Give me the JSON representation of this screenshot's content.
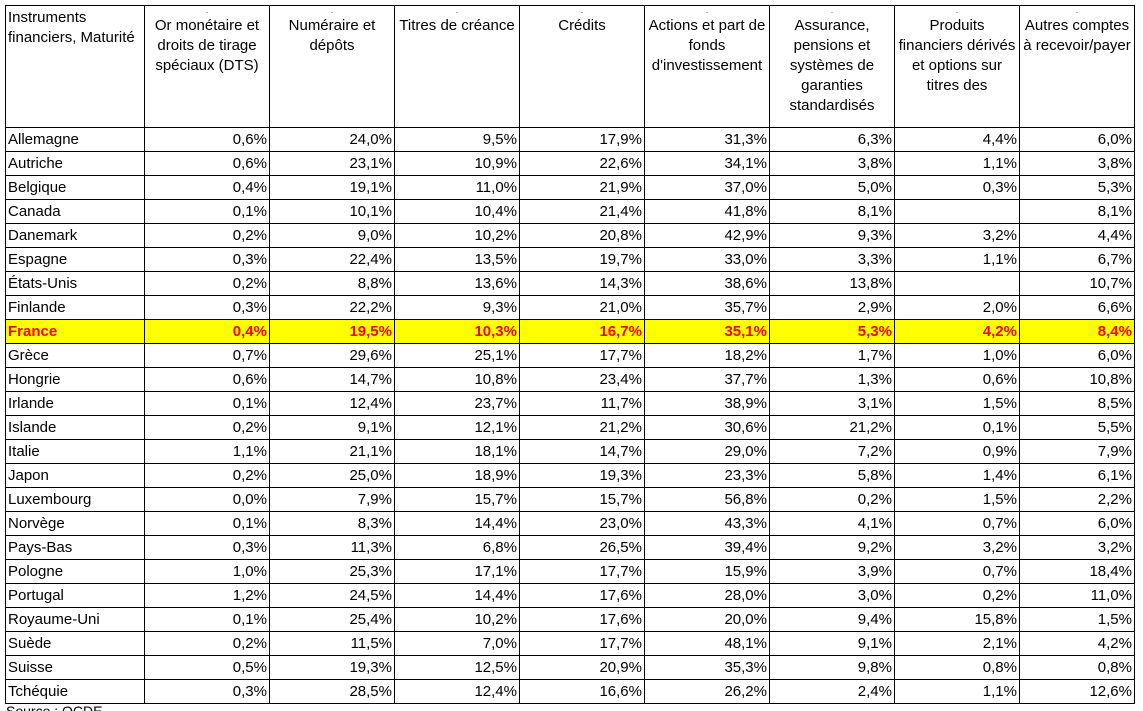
{
  "table": {
    "headers": [
      "Instruments financiers, Maturité",
      "Or monétaire et droits de tirage spéciaux (DTS)",
      "Numéraire et dépôts",
      "Titres de créance",
      "Crédits",
      "Actions et part de fonds d'investissement",
      "Assurance, pensions et systèmes de garanties standardisés",
      "Produits financiers dérivés et options sur titres des",
      "Autres comptes à recevoir/payer"
    ],
    "rows": [
      [
        "Allemagne",
        "0,6%",
        "24,0%",
        "9,5%",
        "17,9%",
        "31,3%",
        "6,3%",
        "4,4%",
        "6,0%"
      ],
      [
        "Autriche",
        "0,6%",
        "23,1%",
        "10,9%",
        "22,6%",
        "34,1%",
        "3,8%",
        "1,1%",
        "3,8%"
      ],
      [
        "Belgique",
        "0,4%",
        "19,1%",
        "11,0%",
        "21,9%",
        "37,0%",
        "5,0%",
        "0,3%",
        "5,3%"
      ],
      [
        "Canada",
        "0,1%",
        "10,1%",
        "10,4%",
        "21,4%",
        "41,8%",
        "8,1%",
        "",
        "8,1%"
      ],
      [
        "Danemark",
        "0,2%",
        "9,0%",
        "10,2%",
        "20,8%",
        "42,9%",
        "9,3%",
        "3,2%",
        "4,4%"
      ],
      [
        "Espagne",
        "0,3%",
        "22,4%",
        "13,5%",
        "19,7%",
        "33,0%",
        "3,3%",
        "1,1%",
        "6,7%"
      ],
      [
        "États-Unis",
        "0,2%",
        "8,8%",
        "13,6%",
        "14,3%",
        "38,6%",
        "13,8%",
        "",
        "10,7%"
      ],
      [
        "Finlande",
        "0,3%",
        "22,2%",
        "9,3%",
        "21,0%",
        "35,7%",
        "2,9%",
        "2,0%",
        "6,6%"
      ],
      [
        "France",
        "0,4%",
        "19,5%",
        "10,3%",
        "16,7%",
        "35,1%",
        "5,3%",
        "4,2%",
        "8,4%"
      ],
      [
        "Grèce",
        "0,7%",
        "29,6%",
        "25,1%",
        "17,7%",
        "18,2%",
        "1,7%",
        "1,0%",
        "6,0%"
      ],
      [
        "Hongrie",
        "0,6%",
        "14,7%",
        "10,8%",
        "23,4%",
        "37,7%",
        "1,3%",
        "0,6%",
        "10,8%"
      ],
      [
        "Irlande",
        "0,1%",
        "12,4%",
        "23,7%",
        "11,7%",
        "38,9%",
        "3,1%",
        "1,5%",
        "8,5%"
      ],
      [
        "Islande",
        "0,2%",
        "9,1%",
        "12,1%",
        "21,2%",
        "30,6%",
        "21,2%",
        "0,1%",
        "5,5%"
      ],
      [
        "Italie",
        "1,1%",
        "21,1%",
        "18,1%",
        "14,7%",
        "29,0%",
        "7,2%",
        "0,9%",
        "7,9%"
      ],
      [
        "Japon",
        "0,2%",
        "25,0%",
        "18,9%",
        "19,3%",
        "23,3%",
        "5,8%",
        "1,4%",
        "6,1%"
      ],
      [
        "Luxembourg",
        "0,0%",
        "7,9%",
        "15,7%",
        "15,7%",
        "56,8%",
        "0,2%",
        "1,5%",
        "2,2%"
      ],
      [
        "Norvège",
        "0,1%",
        "8,3%",
        "14,4%",
        "23,0%",
        "43,3%",
        "4,1%",
        "0,7%",
        "6,0%"
      ],
      [
        "Pays-Bas",
        "0,3%",
        "11,3%",
        "6,8%",
        "26,5%",
        "39,4%",
        "9,2%",
        "3,2%",
        "3,2%"
      ],
      [
        "Pologne",
        "1,0%",
        "25,3%",
        "17,1%",
        "17,7%",
        "15,9%",
        "3,9%",
        "0,7%",
        "18,4%"
      ],
      [
        "Portugal",
        "1,2%",
        "24,5%",
        "14,4%",
        "17,6%",
        "28,0%",
        "3,0%",
        "0,2%",
        "11,0%"
      ],
      [
        "Royaume-Uni",
        "0,1%",
        "25,4%",
        "10,2%",
        "17,6%",
        "20,0%",
        "9,4%",
        "15,8%",
        "1,5%"
      ],
      [
        "Suède",
        "0,2%",
        "11,5%",
        "7,0%",
        "17,7%",
        "48,1%",
        "9,1%",
        "2,1%",
        "4,2%"
      ],
      [
        "Suisse",
        "0,5%",
        "19,3%",
        "12,5%",
        "20,9%",
        "35,3%",
        "9,8%",
        "0,8%",
        "0,8%"
      ],
      [
        "Tchéquie",
        "0,3%",
        "28,5%",
        "12,4%",
        "16,6%",
        "26,2%",
        "2,4%",
        "1,1%",
        "12,6%"
      ]
    ],
    "highlight_row": "France",
    "highlight_bg": "#ffff00",
    "highlight_fg": "#ff0000"
  },
  "footer_text": "Source : OCDE"
}
